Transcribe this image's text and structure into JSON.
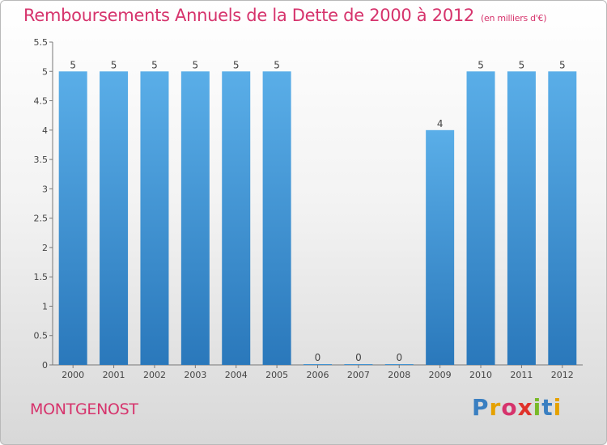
{
  "header": {
    "title": "Remboursements Annuels de la Dette de 2000 à 2012",
    "unit": "(en milliers d'€)"
  },
  "footer": {
    "place": "MONTGENOST",
    "logo_letters": [
      "P",
      "r",
      "o",
      "x",
      "i",
      "t",
      "i"
    ]
  },
  "colors": {
    "bar": "#3f8fd2",
    "title": "#d6336c"
  },
  "chart_data": {
    "type": "bar",
    "title": "Remboursements Annuels de la Dette de 2000 à 2012",
    "subtitle": "(en milliers d'€)",
    "categories": [
      "2000",
      "2001",
      "2002",
      "2003",
      "2004",
      "2005",
      "2006",
      "2007",
      "2008",
      "2009",
      "2010",
      "2011",
      "2012"
    ],
    "values": [
      5,
      5,
      5,
      5,
      5,
      5,
      0,
      0,
      0,
      4,
      5,
      5,
      5
    ],
    "ylim": [
      0,
      5.5
    ],
    "yticks": [
      "0",
      "0.5",
      "1",
      "1.5",
      "2",
      "2.5",
      "3",
      "3.5",
      "4",
      "4.5",
      "5",
      "5.5"
    ],
    "grid": false,
    "legend": "none"
  }
}
